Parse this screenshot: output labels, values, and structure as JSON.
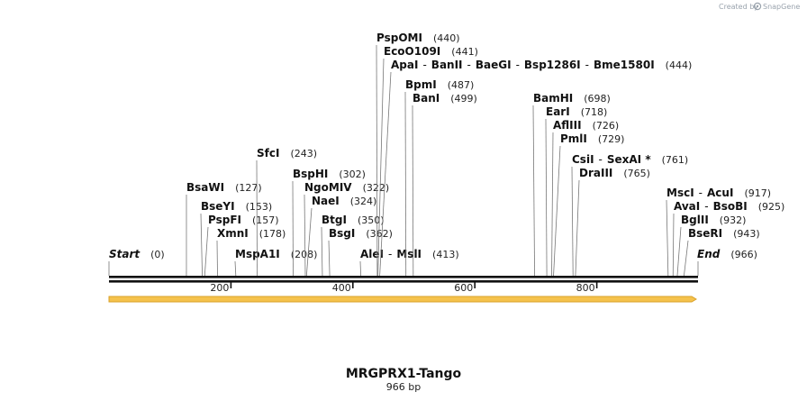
{
  "credit": {
    "text": "Created by",
    "brand": "SnapGene"
  },
  "map": {
    "title": "MRGPRX1-Tango",
    "length_label": "966 bp",
    "length": 966,
    "ticks": [
      {
        "value": 200,
        "label": "200"
      },
      {
        "value": 400,
        "label": "400"
      },
      {
        "value": 600,
        "label": "600"
      },
      {
        "value": 800,
        "label": "800"
      }
    ],
    "colors": {
      "backbone": "#111111",
      "feature_fill": "#f5c24c",
      "feature_stroke": "#d9a12a"
    }
  },
  "sites": [
    {
      "parts": [
        "Start"
      ],
      "pos": 0,
      "label": "(0)",
      "italic": true
    },
    {
      "parts": [
        "End"
      ],
      "pos": 966,
      "label": "(966)",
      "italic": true
    },
    {
      "parts": [
        "MspA1I"
      ],
      "pos": 208,
      "label": "(208)"
    },
    {
      "parts": [
        "AleI",
        "MslI"
      ],
      "pos": 413,
      "label": "(413)"
    },
    {
      "parts": [
        "XmnI"
      ],
      "pos": 178,
      "label": "(178)"
    },
    {
      "parts": [
        "BsgI"
      ],
      "pos": 362,
      "label": "(362)"
    },
    {
      "parts": [
        "PspFI"
      ],
      "pos": 157,
      "label": "(157)"
    },
    {
      "parts": [
        "BtgI"
      ],
      "pos": 350,
      "label": "(350)"
    },
    {
      "parts": [
        "BseYI"
      ],
      "pos": 153,
      "label": "(153)"
    },
    {
      "parts": [
        "NaeI"
      ],
      "pos": 324,
      "label": "(324)"
    },
    {
      "parts": [
        "BsaWI"
      ],
      "pos": 127,
      "label": "(127)"
    },
    {
      "parts": [
        "NgoMIV"
      ],
      "pos": 322,
      "label": "(322)"
    },
    {
      "parts": [
        "BspHI"
      ],
      "pos": 302,
      "label": "(302)"
    },
    {
      "parts": [
        "SfcI"
      ],
      "pos": 243,
      "label": "(243)"
    },
    {
      "parts": [
        "BanI"
      ],
      "pos": 499,
      "label": "(499)"
    },
    {
      "parts": [
        "BpmI"
      ],
      "pos": 487,
      "label": "(487)"
    },
    {
      "parts": [
        "ApaI",
        "BanII",
        "BaeGI",
        "Bsp1286I",
        "Bme1580I"
      ],
      "pos": 444,
      "label": "(444)"
    },
    {
      "parts": [
        "EcoO109I"
      ],
      "pos": 441,
      "label": "(441)"
    },
    {
      "parts": [
        "PspOMI"
      ],
      "pos": 440,
      "label": "(440)"
    },
    {
      "parts": [
        "BamHI"
      ],
      "pos": 698,
      "label": "(698)"
    },
    {
      "parts": [
        "EarI"
      ],
      "pos": 718,
      "label": "(718)"
    },
    {
      "parts": [
        "AflIII"
      ],
      "pos": 726,
      "label": "(726)"
    },
    {
      "parts": [
        "PmlI"
      ],
      "pos": 729,
      "label": "(729)"
    },
    {
      "parts": [
        "CsiI",
        "SexAI *"
      ],
      "pos": 761,
      "label": "(761)"
    },
    {
      "parts": [
        "DraIII"
      ],
      "pos": 765,
      "label": "(765)"
    },
    {
      "parts": [
        "MscI",
        "AcuI"
      ],
      "pos": 917,
      "label": "(917)"
    },
    {
      "parts": [
        "AvaI",
        "BsoBI"
      ],
      "pos": 925,
      "label": "(925)"
    },
    {
      "parts": [
        "BglII"
      ],
      "pos": 932,
      "label": "(932)"
    },
    {
      "parts": [
        "BseRI"
      ],
      "pos": 943,
      "label": "(943)"
    }
  ]
}
